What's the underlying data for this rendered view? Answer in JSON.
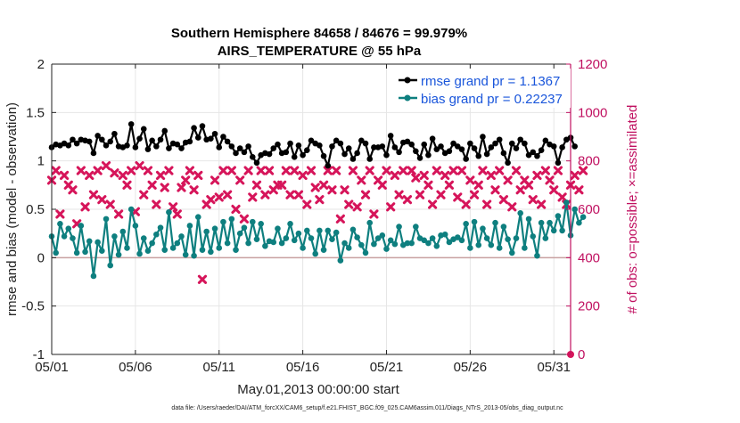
{
  "chart_data": {
    "type": "line",
    "title": "Southern Hemisphere 84658 / 84676 = 99.979%",
    "subtitle": "AIRS_TEMPERATURE @ 55 hPa",
    "xlabel": "May.01,2013 00:00:00 start",
    "ylabel_left": "rmse and bias (model - observation)",
    "ylabel_right": "# of obs: o=possible; ×=assimilated",
    "footnote": "data file: /Users/raeder/DAI/ATM_forcXX/CAM6_setup/f.e21.FHIST_BGC.f09_025.CAM6assim.011/Diags_NTrS_2013-05/obs_diag_output.nc",
    "xlim": [
      0,
      31
    ],
    "ylim_left": [
      -1,
      2
    ],
    "ylim_right": [
      0,
      1200
    ],
    "grid": true,
    "legend_position": "top-right",
    "x_ticks": [
      {
        "value": 0,
        "label": "05/01"
      },
      {
        "value": 5,
        "label": "05/06"
      },
      {
        "value": 10,
        "label": "05/11"
      },
      {
        "value": 15,
        "label": "05/16"
      },
      {
        "value": 20,
        "label": "05/21"
      },
      {
        "value": 25,
        "label": "05/26"
      },
      {
        "value": 30,
        "label": "05/31"
      }
    ],
    "y_ticks_left": [
      {
        "value": -1,
        "label": "-1"
      },
      {
        "value": -0.5,
        "label": "-0.5"
      },
      {
        "value": 0,
        "label": "0"
      },
      {
        "value": 0.5,
        "label": "0.5"
      },
      {
        "value": 1,
        "label": "1"
      },
      {
        "value": 1.5,
        "label": "1.5"
      },
      {
        "value": 2,
        "label": "2"
      }
    ],
    "y_ticks_right": [
      {
        "value": 0,
        "label": "0"
      },
      {
        "value": 200,
        "label": "200"
      },
      {
        "value": 400,
        "label": "400"
      },
      {
        "value": 600,
        "label": "600"
      },
      {
        "value": 800,
        "label": "800"
      },
      {
        "value": 1000,
        "label": "1000"
      },
      {
        "value": 1200,
        "label": "1200"
      }
    ],
    "x_step": 0.25,
    "colors": {
      "rmse": "#000000",
      "bias": "#0e7f7f",
      "obs": "#d6155a",
      "right_axis": "#c01060",
      "zero_line": "#c8a0a0",
      "grid": "#e6e6e6"
    },
    "series": [
      {
        "name": "rmse grand pr = 1.1367",
        "axis": "left",
        "marker": "circle",
        "values": [
          1.14,
          1.17,
          1.16,
          1.18,
          1.16,
          1.22,
          1.18,
          1.22,
          1.21,
          1.2,
          1.08,
          1.26,
          1.22,
          1.16,
          1.2,
          1.28,
          1.15,
          1.14,
          1.16,
          1.38,
          1.14,
          1.23,
          1.33,
          1.12,
          1.21,
          1.15,
          1.22,
          1.31,
          1.13,
          1.18,
          1.17,
          1.13,
          1.19,
          1.2,
          1.34,
          1.24,
          1.36,
          1.22,
          1.23,
          1.28,
          1.14,
          1.25,
          1.2,
          1.15,
          1.08,
          1.13,
          1.09,
          1.15,
          1.04,
          0.98,
          1.06,
          1.08,
          1.07,
          1.13,
          1.17,
          1.08,
          1.09,
          1.18,
          1.04,
          1.16,
          1.06,
          1.11,
          1.21,
          1.18,
          1.16,
          1.05,
          0.95,
          1.15,
          1.21,
          1.18,
          1.07,
          1.13,
          1.02,
          1.08,
          1.21,
          1.18,
          1.02,
          1.14,
          1.14,
          1.15,
          1.06,
          1.26,
          1.14,
          1.09,
          1.19,
          1.2,
          1.17,
          1.1,
          1.03,
          1.17,
          1.06,
          1.23,
          1.12,
          1.15,
          1.08,
          1.1,
          1.18,
          1.15,
          1.12,
          1.02,
          1.18,
          1.13,
          1.05,
          1.25,
          1.07,
          1.14,
          1.18,
          1.22,
          1.08,
          0.98,
          1.18,
          1.13,
          1.22,
          1.18,
          1.06,
          1.09,
          1.05,
          1.11,
          1.21,
          1.17,
          1.15,
          0.98,
          1.14,
          1.22,
          1.24,
          1.15
        ]
      },
      {
        "name": "bias grand pr = 0.22237",
        "axis": "left",
        "marker": "circle",
        "values": [
          0.22,
          0.05,
          0.35,
          0.22,
          0.3,
          0.2,
          0.05,
          0.33,
          0.06,
          0.17,
          -0.19,
          0.16,
          0.07,
          0.4,
          -0.08,
          0.22,
          0.03,
          0.27,
          0.1,
          0.5,
          0.33,
          0.04,
          0.2,
          0.07,
          0.15,
          0.24,
          0.31,
          0.08,
          0.47,
          0.1,
          0.15,
          0.22,
          0.03,
          0.33,
          0.02,
          0.42,
          0.08,
          0.27,
          0.06,
          0.3,
          0.1,
          0.37,
          0.15,
          0.4,
          0.08,
          0.25,
          0.31,
          0.15,
          0.37,
          0.19,
          0.35,
          0.12,
          0.17,
          0.16,
          0.3,
          0.15,
          0.2,
          0.35,
          0.18,
          0.25,
          0.1,
          0.28,
          0.2,
          0.04,
          0.28,
          0.08,
          0.28,
          0.19,
          0.26,
          -0.03,
          0.15,
          0.1,
          0.29,
          0.21,
          0.13,
          0.05,
          0.36,
          0.14,
          0.2,
          0.23,
          0.09,
          0.18,
          0.14,
          0.32,
          0.13,
          0.15,
          0.15,
          0.32,
          0.2,
          0.18,
          0.15,
          0.2,
          0.12,
          0.23,
          0.24,
          0.16,
          0.19,
          0.21,
          0.18,
          0.35,
          0.1,
          0.37,
          0.13,
          0.3,
          0.2,
          0.13,
          0.36,
          0.1,
          0.32,
          0.19,
          0.05,
          0.2,
          0.46,
          0.1,
          0.4,
          0.22,
          0.02,
          0.36,
          0.2,
          0.36,
          0.28,
          0.43,
          0.28,
          0.57,
          0.23,
          0.5,
          0.36,
          0.42
        ]
      },
      {
        "name": "# of obs (assimilated)",
        "axis": "right",
        "marker": "x",
        "values": [
          720,
          760,
          580,
          740,
          700,
          680,
          540,
          760,
          610,
          740,
          660,
          760,
          640,
          780,
          620,
          750,
          580,
          740,
          700,
          760,
          590,
          780,
          660,
          760,
          700,
          620,
          740,
          690,
          760,
          610,
          580,
          690,
          720,
          760,
          680,
          740,
          310,
          620,
          640,
          720,
          650,
          760,
          660,
          760,
          600,
          720,
          560,
          760,
          650,
          700,
          760,
          660,
          760,
          680,
          700,
          700,
          760,
          660,
          760,
          660,
          740,
          620,
          760,
          690,
          640,
          700,
          760,
          680,
          760,
          560,
          680,
          620,
          760,
          610,
          720,
          660,
          760,
          580,
          720,
          700,
          760,
          610,
          740,
          660,
          760,
          640,
          760,
          730,
          660,
          740,
          700,
          620,
          760,
          660,
          740,
          700,
          760,
          650,
          760,
          620,
          720,
          660,
          700,
          760,
          620,
          740,
          680,
          760,
          640,
          720,
          610,
          760,
          680,
          720,
          700,
          640,
          740,
          620,
          760,
          720,
          680,
          760,
          650,
          620,
          700,
          740,
          680,
          760
        ]
      }
    ],
    "extra_points": [
      {
        "series": "# of obs (possible)",
        "x": 31,
        "y": 0,
        "marker": "circle",
        "axis": "right"
      }
    ]
  }
}
